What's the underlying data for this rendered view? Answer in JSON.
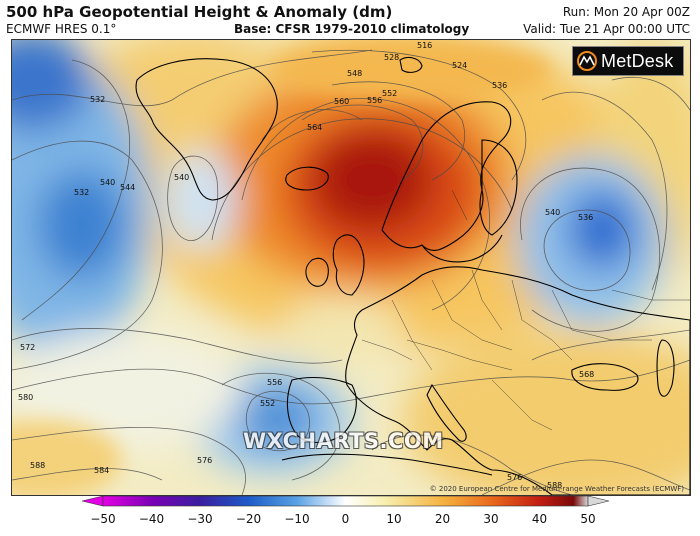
{
  "header": {
    "title": "500 hPa Geopotential Height & Anomaly (dm)",
    "model": "ECMWF HRES 0.1°",
    "base": "Base: CFSR 1979-2010 climatology",
    "run": "Run: Mon 20 Apr 00Z",
    "valid": "Valid: Tue 21 Apr 00:00 UTC"
  },
  "logo": {
    "text": "MetDesk"
  },
  "watermark": "WXCHARTS.COM",
  "copyright": "© 2020 European Centre for Medium-range Weather Forecasts (ECMWF)",
  "colorbar": {
    "ticks": [
      "−50",
      "−40",
      "−30",
      "−20",
      "−10",
      "0",
      "10",
      "20",
      "30",
      "40",
      "50"
    ],
    "colors": [
      "#e400e4",
      "#7a00b4",
      "#3a1ea0",
      "#1e5bc8",
      "#5aa2e4",
      "#cfe6f6",
      "#f7f0b0",
      "#f5b340",
      "#e96a1c",
      "#c21e12",
      "#7a0a0a",
      "#e8e8e8"
    ]
  },
  "contour_labels": [
    {
      "text": "516"
    },
    {
      "text": "524"
    },
    {
      "text": "528"
    },
    {
      "text": "532"
    },
    {
      "text": "540"
    },
    {
      "text": "548"
    },
    {
      "text": "552"
    },
    {
      "text": "556"
    },
    {
      "text": "560"
    },
    {
      "text": "564"
    },
    {
      "text": "568"
    },
    {
      "text": "572"
    },
    {
      "text": "576"
    },
    {
      "text": "580"
    },
    {
      "text": "584"
    },
    {
      "text": "588"
    },
    {
      "text": "536"
    },
    {
      "text": "544"
    }
  ]
}
